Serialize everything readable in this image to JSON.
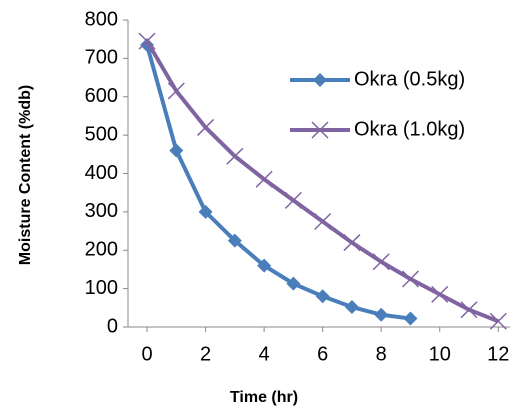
{
  "chart_data": {
    "type": "line",
    "x_label": "Time (hr)",
    "y_label": "Moisture Content (%db)",
    "xlim": [
      -0.65,
      12.4
    ],
    "xticks": [
      0,
      2,
      4,
      6,
      8,
      10,
      12
    ],
    "ylim": [
      0,
      800
    ],
    "yticks": [
      0,
      100,
      200,
      300,
      400,
      500,
      600,
      700,
      800
    ],
    "legend": "upper right",
    "series": [
      {
        "name": "Okra (0.5kg)",
        "color": "#4a7ebb",
        "marker": "diamond",
        "x": [
          0,
          1,
          2,
          3,
          4,
          5,
          6,
          7,
          8,
          9
        ],
        "values": [
          735,
          460,
          300,
          225,
          160,
          113,
          80,
          52,
          32,
          22
        ]
      },
      {
        "name": "Okra (1.0kg)",
        "color": "#8064a2",
        "marker": "x",
        "x": [
          0,
          1,
          2,
          3,
          4,
          5,
          6,
          7,
          8,
          9,
          10,
          11,
          12
        ],
        "values": [
          745,
          615,
          520,
          445,
          385,
          330,
          275,
          220,
          170,
          125,
          85,
          45,
          15
        ]
      }
    ]
  }
}
